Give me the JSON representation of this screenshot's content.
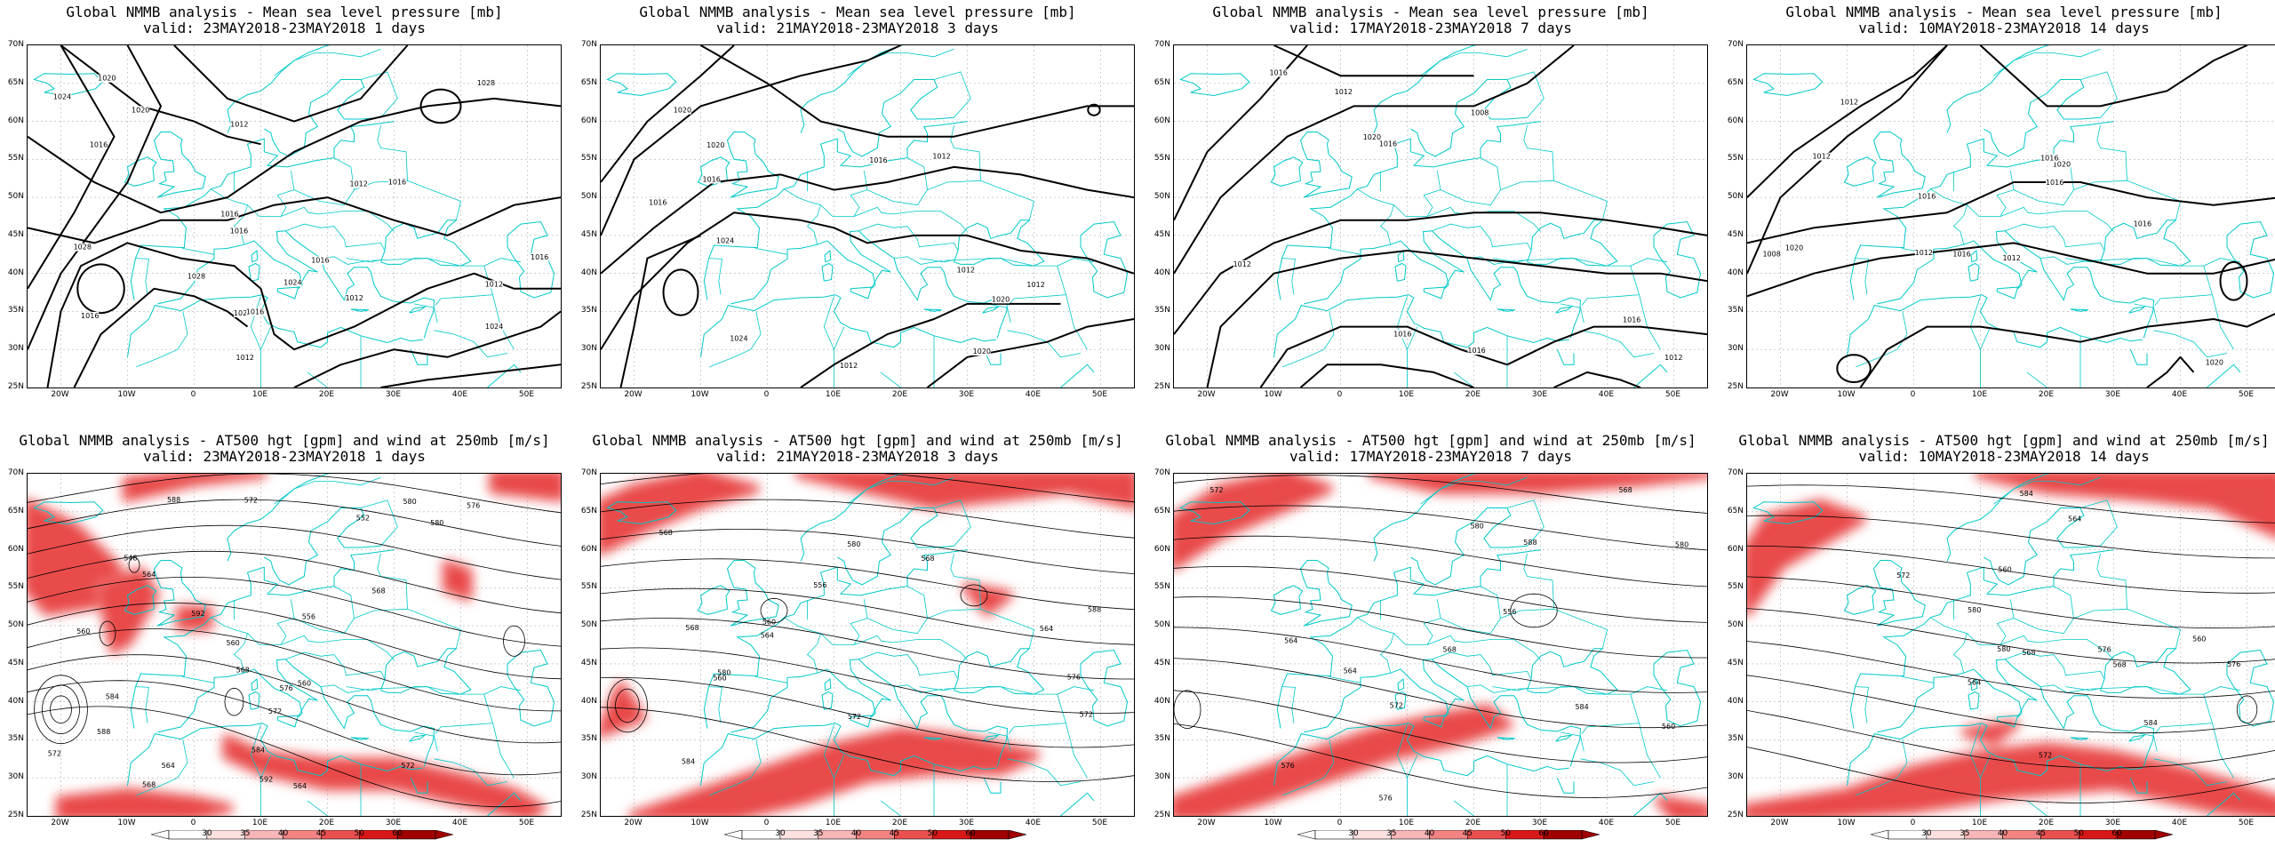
{
  "layout": {
    "cols": 4,
    "rows": 2
  },
  "top_panels": [
    {
      "title": "Global NMMB analysis - Mean sea level pressure [mb]",
      "valid": "valid: 23MAY2018-23MAY2018  1 days",
      "labels": [
        "1028",
        "1028",
        "1024",
        "1016",
        "1012",
        "1020",
        "1020",
        "1024",
        "1016",
        "1028",
        "1024",
        "1020",
        "1016",
        "1016",
        "1016",
        "1016",
        "1012",
        "1016",
        "1012",
        "1012",
        "1016",
        "1012"
      ]
    },
    {
      "title": "Global NMMB analysis - Mean sea level pressure [mb]",
      "valid": "valid: 21MAY2018-23MAY2018  3 days",
      "labels": [
        "1020",
        "1020",
        "1024",
        "1020",
        "1016",
        "1024",
        "1016",
        "1020",
        "1012",
        "1012",
        "1016",
        "1012",
        "1012"
      ]
    },
    {
      "title": "Global NMMB analysis - Mean sea level pressure [mb]",
      "valid": "valid: 17MAY2018-23MAY2018  7 days",
      "labels": [
        "1020",
        "1016",
        "1016",
        "1016",
        "1016",
        "1012",
        "1012",
        "1016",
        "1008",
        "1012"
      ]
    },
    {
      "title": "Global NMMB analysis - Mean sea level pressure [mb]",
      "valid": "valid: 10MAY2018-23MAY2018  14 days",
      "labels": [
        "1020",
        "1020",
        "1020",
        "1016",
        "1016",
        "1016",
        "1016",
        "1016",
        "1012",
        "1012",
        "1012",
        "1008",
        "1012"
      ]
    }
  ],
  "bottom_panels": [
    {
      "title": "Global NMMB analysis - AT500 hgt [gpm] and wind at 250mb [m/s]",
      "valid": "valid: 23MAY2018-23MAY2018  1 days",
      "labels": [
        "548",
        "552",
        "556",
        "560",
        "564",
        "568",
        "572",
        "568",
        "564",
        "560",
        "584",
        "576",
        "572",
        "568",
        "564",
        "560",
        "572",
        "576",
        "580",
        "584",
        "588",
        "592",
        "572",
        "580",
        "588",
        "592"
      ]
    },
    {
      "title": "Global NMMB analysis - AT500 hgt [gpm] and wind at 250mb [m/s]",
      "valid": "valid: 21MAY2018-23MAY2018  3 days",
      "labels": [
        "556",
        "560",
        "564",
        "572",
        "568",
        "564",
        "560",
        "568",
        "572",
        "576",
        "580",
        "584",
        "588",
        "568",
        "580"
      ]
    },
    {
      "title": "Global NMMB analysis - AT500 hgt [gpm] and wind at 250mb [m/s]",
      "valid": "valid: 17MAY2018-23MAY2018  7 days",
      "labels": [
        "556",
        "560",
        "564",
        "568",
        "572",
        "576",
        "580",
        "584",
        "588",
        "564",
        "568",
        "572",
        "576",
        "580"
      ]
    },
    {
      "title": "Global NMMB analysis - AT500 hgt [gpm] and wind at 250mb [m/s]",
      "valid": "valid: 10MAY2018-23MAY2018  14 days",
      "labels": [
        "560",
        "564",
        "568",
        "572",
        "576",
        "580",
        "584",
        "560",
        "564",
        "568",
        "572",
        "576",
        "580",
        "584"
      ]
    }
  ],
  "lat_labels": [
    "70N",
    "65N",
    "60N",
    "55N",
    "50N",
    "45N",
    "40N",
    "35N",
    "30N",
    "25N"
  ],
  "lon_labels": [
    "20W",
    "10W",
    "0",
    "10E",
    "20E",
    "30E",
    "40E",
    "50E"
  ],
  "colorbar": {
    "ticks": [
      "30",
      "35",
      "40",
      "45",
      "50",
      "60"
    ],
    "colors": [
      "#ffffff",
      "#fde0e0",
      "#f9b6b6",
      "#f38383",
      "#ea5050",
      "#d81818",
      "#a00000"
    ]
  },
  "colors": {
    "contour": "#000000",
    "coast": "#00c8c8",
    "jet": "#e02020",
    "grid": "#b0b0b0"
  }
}
